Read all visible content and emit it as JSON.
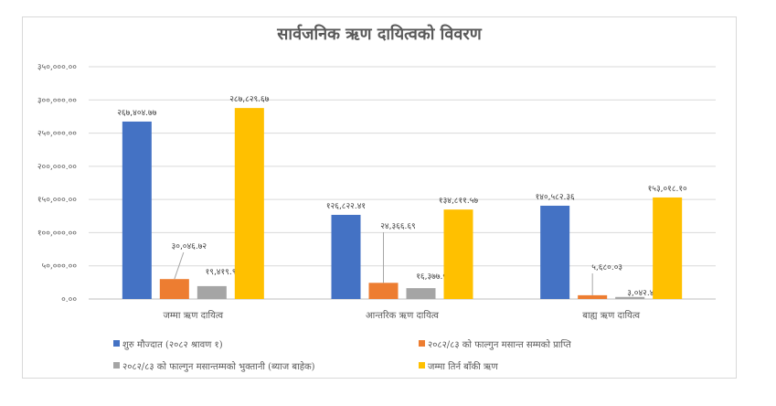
{
  "chart_data": {
    "type": "bar",
    "title": "सार्वजनिक ऋण दायित्वको विवरण",
    "xlabel": "",
    "ylabel": "",
    "ylim": [
      0,
      350000
    ],
    "grid": true,
    "legend_position": "bottom",
    "y_ticks": [
      {
        "value": 0,
        "label": "०.००"
      },
      {
        "value": 50000,
        "label": "५०,०००.००"
      },
      {
        "value": 100000,
        "label": "१००,०००.००"
      },
      {
        "value": 150000,
        "label": "१५०,०००.००"
      },
      {
        "value": 200000,
        "label": "२००,०००.००"
      },
      {
        "value": 250000,
        "label": "२५०,०००.००"
      },
      {
        "value": 300000,
        "label": "३००,०००.००"
      },
      {
        "value": 350000,
        "label": "३५०,०००.००"
      }
    ],
    "categories": [
      "जम्मा ऋण दायित्व",
      "आन्तरिक ऋण दायित्व",
      "बाह्य ऋण दायित्व"
    ],
    "series": [
      {
        "name": "शुरु मौज्दात (२०८२ श्रावण १)",
        "color": "#4472c4",
        "values": [
          267404.77,
          126822.41,
          140582.36
        ],
        "labels": [
          "२६७,४०४.७७",
          "१२६,८२२.४१",
          "१४०,५८२.३६"
        ]
      },
      {
        "name": "२०८२/८३ को फाल्गुन मसान्त सम्मको प्राप्ति",
        "color": "#ed7d31",
        "values": [
          30046.72,
          24366.69,
          5680.03
        ],
        "labels": [
          "३०,०४६.७२",
          "२४,३६६.६९",
          "५,६८०.०३"
        ]
      },
      {
        "name": "२०८२/८३ को फाल्गुन मसान्तम्मको भुक्तानी (ब्याज बाहेक)",
        "color": "#a5a5a5",
        "values": [
          19419.96,
          16377.53,
          3042.43
        ],
        "labels": [
          "१९,४१९.९६",
          "१६,३७७.५३",
          "३,०४२.४३"
        ]
      },
      {
        "name": "जम्मा तिर्न बाँकी ऋण",
        "color": "#ffc000",
        "values": [
          287829.67,
          134811.57,
          153018.1
        ],
        "labels": [
          "२८७,८२९.६७",
          "१३४,८११.५७",
          "१५३,०१८.१०"
        ]
      }
    ]
  }
}
